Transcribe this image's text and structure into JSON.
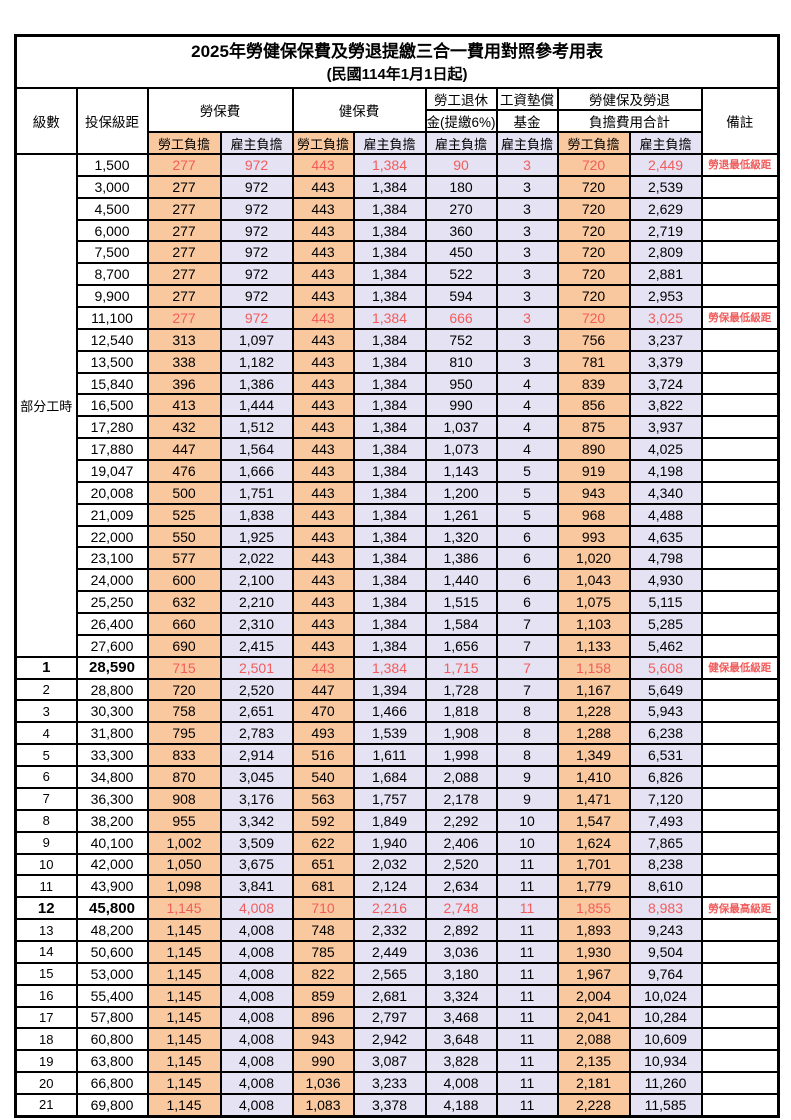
{
  "title": "2025年勞健保保費及勞退提繳三合一費用對照參考用表",
  "subtitle": "(民國114年1月1日起)",
  "header": {
    "level": "級數",
    "bracket": "投保級距",
    "labor_fee": "勞保費",
    "health_fee": "健保費",
    "pension_l1": "勞工退休",
    "pension_l2": "金(提繳6%)",
    "fund_l1": "工資墊償",
    "fund_l2": "基金",
    "total_l1": "勞健保及勞退",
    "total_l2": "負擔費用合計",
    "remark": "備註",
    "employee_share": "勞工負擔",
    "employer_share": "雇主負擔"
  },
  "part_time_label": "部分工時",
  "part_time_row_span": 23,
  "colors": {
    "employee_bg": "#F9C89E",
    "employer_bg": "#E4E2F3",
    "highlight": "#F25C5C"
  },
  "remarks": {
    "pension_min": "勞退最低級距",
    "labor_min": "勞保最低級距",
    "health_min": "健保最低級距",
    "labor_max": "勞保最高級距"
  },
  "rows": [
    [
      "",
      "1,500",
      "277",
      "972",
      "443",
      "1,384",
      "90",
      "3",
      "720",
      "2,449",
      "勞退最低級距",
      "hl"
    ],
    [
      "",
      "3,000",
      "277",
      "972",
      "443",
      "1,384",
      "180",
      "3",
      "720",
      "2,539",
      "",
      ""
    ],
    [
      "",
      "4,500",
      "277",
      "972",
      "443",
      "1,384",
      "270",
      "3",
      "720",
      "2,629",
      "",
      ""
    ],
    [
      "",
      "6,000",
      "277",
      "972",
      "443",
      "1,384",
      "360",
      "3",
      "720",
      "2,719",
      "",
      ""
    ],
    [
      "",
      "7,500",
      "277",
      "972",
      "443",
      "1,384",
      "450",
      "3",
      "720",
      "2,809",
      "",
      ""
    ],
    [
      "",
      "8,700",
      "277",
      "972",
      "443",
      "1,384",
      "522",
      "3",
      "720",
      "2,881",
      "",
      ""
    ],
    [
      "",
      "9,900",
      "277",
      "972",
      "443",
      "1,384",
      "594",
      "3",
      "720",
      "2,953",
      "",
      ""
    ],
    [
      "",
      "11,100",
      "277",
      "972",
      "443",
      "1,384",
      "666",
      "3",
      "720",
      "3,025",
      "勞保最低級距",
      "hl"
    ],
    [
      "",
      "12,540",
      "313",
      "1,097",
      "443",
      "1,384",
      "752",
      "3",
      "756",
      "3,237",
      "",
      ""
    ],
    [
      "",
      "13,500",
      "338",
      "1,182",
      "443",
      "1,384",
      "810",
      "3",
      "781",
      "3,379",
      "",
      ""
    ],
    [
      "",
      "15,840",
      "396",
      "1,386",
      "443",
      "1,384",
      "950",
      "4",
      "839",
      "3,724",
      "",
      ""
    ],
    [
      "",
      "16,500",
      "413",
      "1,444",
      "443",
      "1,384",
      "990",
      "4",
      "856",
      "3,822",
      "",
      ""
    ],
    [
      "",
      "17,280",
      "432",
      "1,512",
      "443",
      "1,384",
      "1,037",
      "4",
      "875",
      "3,937",
      "",
      ""
    ],
    [
      "",
      "17,880",
      "447",
      "1,564",
      "443",
      "1,384",
      "1,073",
      "4",
      "890",
      "4,025",
      "",
      ""
    ],
    [
      "",
      "19,047",
      "476",
      "1,666",
      "443",
      "1,384",
      "1,143",
      "5",
      "919",
      "4,198",
      "",
      ""
    ],
    [
      "",
      "20,008",
      "500",
      "1,751",
      "443",
      "1,384",
      "1,200",
      "5",
      "943",
      "4,340",
      "",
      ""
    ],
    [
      "",
      "21,009",
      "525",
      "1,838",
      "443",
      "1,384",
      "1,261",
      "5",
      "968",
      "4,488",
      "",
      ""
    ],
    [
      "",
      "22,000",
      "550",
      "1,925",
      "443",
      "1,384",
      "1,320",
      "6",
      "993",
      "4,635",
      "",
      ""
    ],
    [
      "",
      "23,100",
      "577",
      "2,022",
      "443",
      "1,384",
      "1,386",
      "6",
      "1,020",
      "4,798",
      "",
      ""
    ],
    [
      "",
      "24,000",
      "600",
      "2,100",
      "443",
      "1,384",
      "1,440",
      "6",
      "1,043",
      "4,930",
      "",
      ""
    ],
    [
      "",
      "25,250",
      "632",
      "2,210",
      "443",
      "1,384",
      "1,515",
      "6",
      "1,075",
      "5,115",
      "",
      ""
    ],
    [
      "",
      "26,400",
      "660",
      "2,310",
      "443",
      "1,384",
      "1,584",
      "7",
      "1,103",
      "5,285",
      "",
      ""
    ],
    [
      "",
      "27,600",
      "690",
      "2,415",
      "443",
      "1,384",
      "1,656",
      "7",
      "1,133",
      "5,462",
      "",
      ""
    ],
    [
      "1",
      "28,590",
      "715",
      "2,501",
      "443",
      "1,384",
      "1,715",
      "7",
      "1,158",
      "5,608",
      "健保最低級距",
      "hl bamt"
    ],
    [
      "2",
      "28,800",
      "720",
      "2,520",
      "447",
      "1,394",
      "1,728",
      "7",
      "1,167",
      "5,649",
      "",
      ""
    ],
    [
      "3",
      "30,300",
      "758",
      "2,651",
      "470",
      "1,466",
      "1,818",
      "8",
      "1,228",
      "5,943",
      "",
      ""
    ],
    [
      "4",
      "31,800",
      "795",
      "2,783",
      "493",
      "1,539",
      "1,908",
      "8",
      "1,288",
      "6,238",
      "",
      ""
    ],
    [
      "5",
      "33,300",
      "833",
      "2,914",
      "516",
      "1,611",
      "1,998",
      "8",
      "1,349",
      "6,531",
      "",
      ""
    ],
    [
      "6",
      "34,800",
      "870",
      "3,045",
      "540",
      "1,684",
      "2,088",
      "9",
      "1,410",
      "6,826",
      "",
      ""
    ],
    [
      "7",
      "36,300",
      "908",
      "3,176",
      "563",
      "1,757",
      "2,178",
      "9",
      "1,471",
      "7,120",
      "",
      ""
    ],
    [
      "8",
      "38,200",
      "955",
      "3,342",
      "592",
      "1,849",
      "2,292",
      "10",
      "1,547",
      "7,493",
      "",
      ""
    ],
    [
      "9",
      "40,100",
      "1,002",
      "3,509",
      "622",
      "1,940",
      "2,406",
      "10",
      "1,624",
      "7,865",
      "",
      ""
    ],
    [
      "10",
      "42,000",
      "1,050",
      "3,675",
      "651",
      "2,032",
      "2,520",
      "11",
      "1,701",
      "8,238",
      "",
      ""
    ],
    [
      "11",
      "43,900",
      "1,098",
      "3,841",
      "681",
      "2,124",
      "2,634",
      "11",
      "1,779",
      "8,610",
      "",
      ""
    ],
    [
      "12",
      "45,800",
      "1,145",
      "4,008",
      "710",
      "2,216",
      "2,748",
      "11",
      "1,855",
      "8,983",
      "勞保最高級距",
      "hl bamt"
    ],
    [
      "13",
      "48,200",
      "1,145",
      "4,008",
      "748",
      "2,332",
      "2,892",
      "11",
      "1,893",
      "9,243",
      "",
      ""
    ],
    [
      "14",
      "50,600",
      "1,145",
      "4,008",
      "785",
      "2,449",
      "3,036",
      "11",
      "1,930",
      "9,504",
      "",
      ""
    ],
    [
      "15",
      "53,000",
      "1,145",
      "4,008",
      "822",
      "2,565",
      "3,180",
      "11",
      "1,967",
      "9,764",
      "",
      ""
    ],
    [
      "16",
      "55,400",
      "1,145",
      "4,008",
      "859",
      "2,681",
      "3,324",
      "11",
      "2,004",
      "10,024",
      "",
      ""
    ],
    [
      "17",
      "57,800",
      "1,145",
      "4,008",
      "896",
      "2,797",
      "3,468",
      "11",
      "2,041",
      "10,284",
      "",
      ""
    ],
    [
      "18",
      "60,800",
      "1,145",
      "4,008",
      "943",
      "2,942",
      "3,648",
      "11",
      "2,088",
      "10,609",
      "",
      ""
    ],
    [
      "19",
      "63,800",
      "1,145",
      "4,008",
      "990",
      "3,087",
      "3,828",
      "11",
      "2,135",
      "10,934",
      "",
      ""
    ],
    [
      "20",
      "66,800",
      "1,145",
      "4,008",
      "1,036",
      "3,233",
      "4,008",
      "11",
      "2,181",
      "11,260",
      "",
      ""
    ],
    [
      "21",
      "69,800",
      "1,145",
      "4,008",
      "1,083",
      "3,378",
      "4,188",
      "11",
      "2,228",
      "11,585",
      "",
      ""
    ]
  ]
}
